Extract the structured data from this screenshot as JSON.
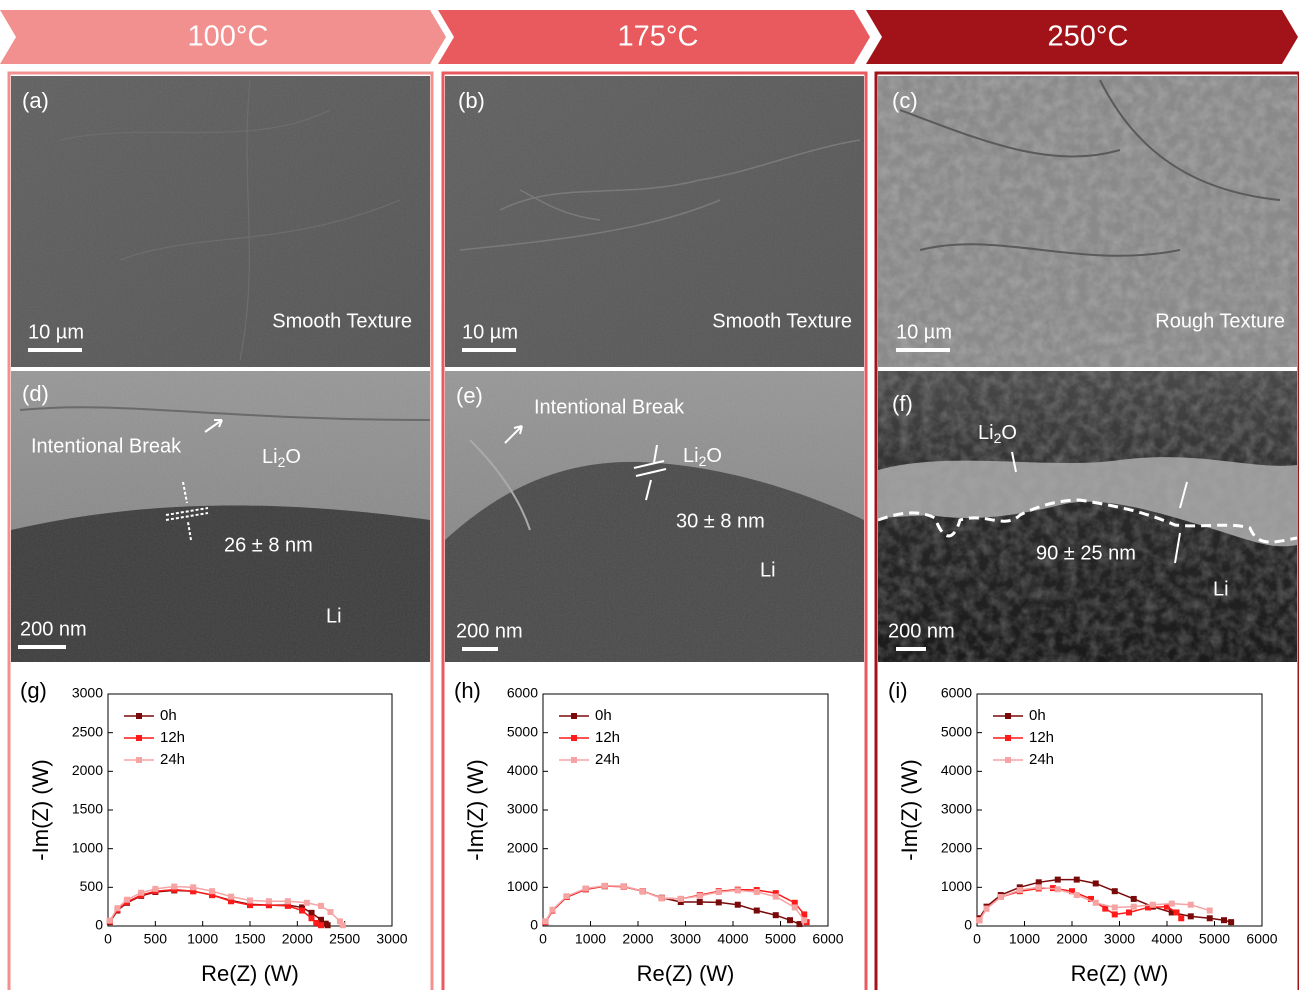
{
  "headers": [
    "100°C",
    "175°C",
    "250°C"
  ],
  "columns": [
    {
      "top": {
        "label": "(a)",
        "scale": "10 µm",
        "note": "Smooth Texture"
      },
      "middle": {
        "label": "(d)",
        "scale": "200 nm",
        "break": "Intentional Break",
        "li2o": [
          "Li",
          "2",
          "O"
        ],
        "thickness": "26 ± 8 nm",
        "li": "Li"
      },
      "bottom_label": "(g)"
    },
    {
      "top": {
        "label": "(b)",
        "scale": "10 µm",
        "note": "Smooth Texture"
      },
      "middle": {
        "label": "(e)",
        "scale": "200 nm",
        "break": "Intentional Break",
        "li2o": [
          "Li",
          "2",
          "O"
        ],
        "thickness": "30 ± 8 nm",
        "li": "Li"
      },
      "bottom_label": "(h)"
    },
    {
      "top": {
        "label": "(c)",
        "scale": "10 µm",
        "note": "Rough Texture"
      },
      "middle": {
        "label": "(f)",
        "scale": "200 nm",
        "li2o": [
          "Li",
          "2",
          "O"
        ],
        "thickness": "90 ± 25 nm",
        "li": "Li"
      },
      "bottom_label": "(i)"
    }
  ],
  "chart_data": [
    {
      "type": "scatter",
      "x_label": "Re(Z) (W)",
      "y_label": "-Im(Z) (W)",
      "xlim": [
        0,
        3000
      ],
      "xticks": [
        0,
        500,
        1000,
        1500,
        2000,
        2500,
        3000
      ],
      "ylim": [
        0,
        3000
      ],
      "yticks": [
        0,
        500,
        1000,
        1500,
        2000,
        2500,
        3000
      ],
      "series": [
        {
          "name": "0h",
          "color": "#7a0a0a",
          "x": [
            20,
            100,
            200,
            350,
            500,
            700,
            900,
            1100,
            1300,
            1500,
            1700,
            1900,
            2050,
            2150,
            2250,
            2300,
            2320
          ],
          "values": [
            50,
            200,
            300,
            390,
            440,
            460,
            450,
            400,
            330,
            280,
            270,
            270,
            240,
            170,
            80,
            30,
            10
          ]
        },
        {
          "name": "12h",
          "color": "#ff1a1a",
          "x": [
            20,
            100,
            200,
            350,
            500,
            700,
            900,
            1100,
            1300,
            1500,
            1700,
            1900,
            2050,
            2150,
            2200,
            2250
          ],
          "values": [
            60,
            210,
            310,
            400,
            450,
            470,
            450,
            400,
            320,
            270,
            270,
            260,
            200,
            100,
            40,
            10
          ]
        },
        {
          "name": "24h",
          "color": "#f5a3a3",
          "x": [
            20,
            100,
            200,
            350,
            500,
            700,
            900,
            1100,
            1300,
            1500,
            1700,
            1900,
            2100,
            2250,
            2350,
            2450,
            2480
          ],
          "values": [
            70,
            230,
            340,
            430,
            480,
            510,
            500,
            450,
            380,
            330,
            320,
            320,
            300,
            260,
            180,
            60,
            10
          ]
        }
      ]
    },
    {
      "type": "scatter",
      "x_label": "Re(Z) (W)",
      "y_label": "-Im(Z) (W)",
      "xlim": [
        0,
        6000
      ],
      "xticks": [
        0,
        1000,
        2000,
        3000,
        4000,
        5000,
        6000
      ],
      "ylim": [
        0,
        6000
      ],
      "yticks": [
        0,
        1000,
        2000,
        3000,
        4000,
        5000,
        6000
      ],
      "series": [
        {
          "name": "0h",
          "color": "#7a0a0a",
          "x": [
            50,
            200,
            500,
            900,
            1300,
            1700,
            2100,
            2500,
            2900,
            3300,
            3700,
            4100,
            4500,
            4900,
            5200,
            5400
          ],
          "values": [
            100,
            400,
            750,
            950,
            1030,
            1020,
            900,
            730,
            620,
            620,
            610,
            550,
            400,
            280,
            150,
            50
          ]
        },
        {
          "name": "12h",
          "color": "#ff1a1a",
          "x": [
            50,
            200,
            500,
            900,
            1300,
            1700,
            2100,
            2500,
            2900,
            3300,
            3700,
            4100,
            4500,
            4900,
            5300,
            5500,
            5550
          ],
          "values": [
            100,
            400,
            750,
            950,
            1030,
            1020,
            900,
            720,
            700,
            800,
            900,
            940,
            930,
            850,
            600,
            300,
            100
          ]
        },
        {
          "name": "24h",
          "color": "#f5a3a3",
          "x": [
            50,
            200,
            500,
            900,
            1300,
            1700,
            2100,
            2500,
            2900,
            3300,
            3700,
            4100,
            4500,
            4900,
            5300,
            5500
          ],
          "values": [
            120,
            420,
            770,
            970,
            1040,
            1030,
            900,
            720,
            700,
            780,
            880,
            920,
            880,
            760,
            480,
            150
          ]
        }
      ]
    },
    {
      "type": "scatter",
      "x_label": "Re(Z) (W)",
      "y_label": "-Im(Z) (W)",
      "xlim": [
        0,
        6000
      ],
      "xticks": [
        0,
        1000,
        2000,
        3000,
        4000,
        5000,
        6000
      ],
      "ylim": [
        0,
        6000
      ],
      "yticks": [
        0,
        1000,
        2000,
        3000,
        4000,
        5000,
        6000
      ],
      "series": [
        {
          "name": "0h",
          "color": "#7a0a0a",
          "x": [
            50,
            200,
            500,
            900,
            1300,
            1700,
            2100,
            2500,
            2900,
            3300,
            3700,
            4100,
            4500,
            4900,
            5200,
            5350
          ],
          "values": [
            200,
            500,
            800,
            1000,
            1130,
            1200,
            1200,
            1100,
            900,
            700,
            500,
            350,
            250,
            200,
            150,
            100
          ]
        },
        {
          "name": "12h",
          "color": "#ff1a1a",
          "x": [
            50,
            200,
            500,
            900,
            1300,
            1600,
            2000,
            2400,
            2700,
            2900,
            3200,
            3600,
            4000,
            4200,
            4300
          ],
          "values": [
            150,
            450,
            750,
            900,
            970,
            980,
            900,
            700,
            450,
            300,
            350,
            480,
            500,
            350,
            200
          ]
        },
        {
          "name": "24h",
          "color": "#f5a3a3",
          "x": [
            50,
            200,
            500,
            900,
            1300,
            1700,
            2100,
            2500,
            2900,
            3300,
            3700,
            4100,
            4500,
            4900
          ],
          "values": [
            150,
            450,
            750,
            930,
            1000,
            950,
            800,
            600,
            480,
            500,
            550,
            580,
            550,
            400
          ]
        }
      ]
    }
  ]
}
